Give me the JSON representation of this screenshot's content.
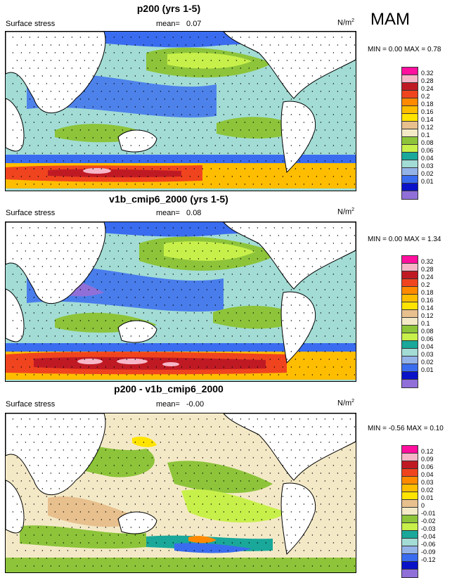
{
  "season": "MAM",
  "panels": [
    {
      "title": "p200 (yrs 1-5)",
      "variable": "Surface stress",
      "mean_label": "mean=",
      "mean_value": "0.07",
      "units": "N/m",
      "units_exp": "2",
      "minmax": "MIN =   0.00 MAX =   0.78",
      "colorbar": {
        "labels": [
          "0.32",
          "0.28",
          "0.24",
          "0.2",
          "0.18",
          "0.16",
          "0.14",
          "0.12",
          "0.1",
          "0.08",
          "0.06",
          "0.04",
          "0.03",
          "0.02",
          "0.01"
        ],
        "colors": [
          "#ff0f9e",
          "#f7b6c8",
          "#bf1a24",
          "#f0441e",
          "#ff8a00",
          "#ffbd00",
          "#ffe400",
          "#e7c08e",
          "#f4e9c7",
          "#8dc43a",
          "#c8f04a",
          "#19a89a",
          "#a2dcd5",
          "#93b2e8",
          "#3a6cf0",
          "#0a12c8",
          "#9070d8"
        ]
      }
    },
    {
      "title": "v1b_cmip6_2000 (yrs 1-5)",
      "variable": "Surface stress",
      "mean_label": "mean=",
      "mean_value": "0.08",
      "units": "N/m",
      "units_exp": "2",
      "minmax": "MIN =   0.00 MAX =   1.34",
      "colorbar": {
        "labels": [
          "0.32",
          "0.28",
          "0.24",
          "0.2",
          "0.18",
          "0.16",
          "0.14",
          "0.12",
          "0.1",
          "0.08",
          "0.06",
          "0.04",
          "0.03",
          "0.02",
          "0.01"
        ],
        "colors": [
          "#ff0f9e",
          "#f7b6c8",
          "#bf1a24",
          "#f0441e",
          "#ff8a00",
          "#ffbd00",
          "#ffe400",
          "#e7c08e",
          "#f4e9c7",
          "#8dc43a",
          "#c8f04a",
          "#19a89a",
          "#a2dcd5",
          "#93b2e8",
          "#3a6cf0",
          "#0a12c8",
          "#9070d8"
        ]
      }
    },
    {
      "title": "p200 - v1b_cmip6_2000",
      "variable": "Surface stress",
      "mean_label": "mean=",
      "mean_value": "-0.00",
      "units": "N/m",
      "units_exp": "2",
      "minmax": "MIN =  -0.56 MAX =   0.10",
      "colorbar": {
        "labels": [
          "0.12",
          "0.09",
          "0.06",
          "0.04",
          "0.03",
          "0.02",
          "0.01",
          "0",
          "-0.01",
          "-0.02",
          "-0.03",
          "-0.04",
          "-0.06",
          "-0.09",
          "-0.12"
        ],
        "colors": [
          "#ff0f9e",
          "#f7b6c8",
          "#bf1a24",
          "#f0441e",
          "#ff8a00",
          "#ffbd00",
          "#ffe400",
          "#e7c08e",
          "#f4e9c7",
          "#8dc43a",
          "#c8f04a",
          "#19a89a",
          "#a2dcd5",
          "#93b2e8",
          "#3a6cf0",
          "#0a12c8",
          "#9070d8"
        ]
      }
    }
  ]
}
